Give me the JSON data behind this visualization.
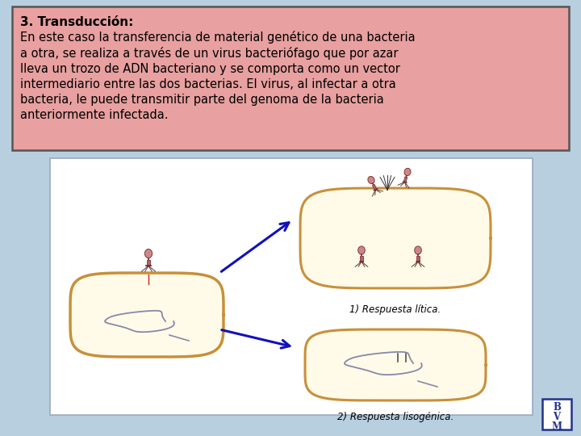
{
  "title_bold": "3. Transducción:",
  "body_text": "En este caso la transferencia de material genético de una bacteria\na otra, se realiza a través de un virus bacteriófago que por azar\nlleva un trozo de ADN bacteriano y se comporta como un vector\nintermediario entre las dos bacterias. El virus, al infectar a otra\nbacteria, le puede transmitir parte del genoma de la bacteria\nanteriormente infectada.",
  "bg_color": "#b8cfe0",
  "text_box_bg": "#e8a0a0",
  "text_box_border": "#555555",
  "diagram_bg": "#ffffff",
  "cell_fill": "#fffbe8",
  "cell_border": "#c8903a",
  "label1": "1) Respuesta lítica.",
  "label2": "2) Respuesta lisogénica.",
  "watermark_lines": [
    "B",
    "V",
    "M"
  ],
  "watermark_border": "#223388",
  "arrow_color": "#1111bb",
  "phage_head_fill": "#cc8888",
  "phage_head_edge": "#883333",
  "phage_body_fill": "#aa6666",
  "phage_fiber_color": "#663333",
  "dna_color": "#8888aa",
  "title_fontsize": 11,
  "body_fontsize": 10.5,
  "label_fontsize": 8.5
}
